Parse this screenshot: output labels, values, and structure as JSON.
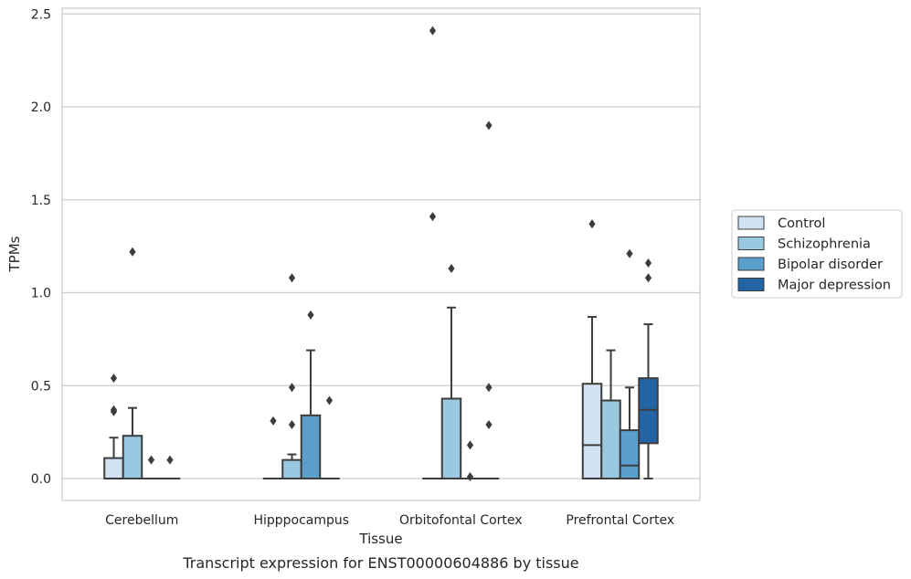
{
  "chart_data": {
    "type": "box",
    "title": "",
    "caption": "Transcript expression for ENST00000604886 by tissue",
    "xlabel": "Tissue",
    "ylabel": "TPMs",
    "ylim": [
      -0.12,
      2.55
    ],
    "yticks": [
      0.0,
      0.5,
      1.0,
      1.5,
      2.0,
      2.5
    ],
    "ytick_labels": [
      "0.0",
      "0.5",
      "1.0",
      "1.5",
      "2.0",
      "2.5"
    ],
    "grid": "horizontal",
    "legend_position": "right",
    "categories": [
      "Cerebellum",
      "Hipppocampus",
      "Orbitofontal Cortex",
      "Prefrontal Cortex"
    ],
    "series": [
      {
        "name": "Control",
        "color": "#d0e1f1",
        "boxes": [
          {
            "q1": 0.0,
            "median": 0.0,
            "q3": 0.11,
            "whisker_low": 0.0,
            "whisker_high": 0.22,
            "outliers": [
              0.36,
              0.37,
              0.54
            ]
          },
          {
            "q1": 0.0,
            "median": 0.0,
            "q3": 0.0,
            "whisker_low": 0.0,
            "whisker_high": 0.0,
            "outliers": [
              0.31
            ]
          },
          {
            "q1": 0.0,
            "median": 0.0,
            "q3": 0.0,
            "whisker_low": 0.0,
            "whisker_high": 0.0,
            "outliers": [
              1.41,
              2.41
            ]
          },
          {
            "q1": 0.0,
            "median": 0.18,
            "q3": 0.51,
            "whisker_low": 0.0,
            "whisker_high": 0.87,
            "outliers": [
              1.37
            ]
          }
        ]
      },
      {
        "name": "Schizophrenia",
        "color": "#9ac8e0",
        "boxes": [
          {
            "q1": 0.0,
            "median": 0.0,
            "q3": 0.23,
            "whisker_low": 0.0,
            "whisker_high": 0.38,
            "outliers": [
              1.22
            ]
          },
          {
            "q1": 0.0,
            "median": 0.0,
            "q3": 0.1,
            "whisker_low": 0.0,
            "whisker_high": 0.13,
            "outliers": [
              0.29,
              0.49,
              1.08
            ]
          },
          {
            "q1": 0.0,
            "median": 0.0,
            "q3": 0.43,
            "whisker_low": 0.0,
            "whisker_high": 0.92,
            "outliers": [
              1.13
            ]
          },
          {
            "q1": 0.0,
            "median": 0.0,
            "q3": 0.42,
            "whisker_low": 0.0,
            "whisker_high": 0.69,
            "outliers": []
          }
        ]
      },
      {
        "name": "Bipolar disorder",
        "color": "#5a9ecc",
        "boxes": [
          {
            "q1": 0.0,
            "median": 0.0,
            "q3": 0.0,
            "whisker_low": 0.0,
            "whisker_high": 0.0,
            "outliers": [
              0.1
            ]
          },
          {
            "q1": 0.0,
            "median": 0.0,
            "q3": 0.34,
            "whisker_low": 0.0,
            "whisker_high": 0.69,
            "outliers": [
              0.88
            ]
          },
          {
            "q1": 0.0,
            "median": 0.0,
            "q3": 0.0,
            "whisker_low": 0.0,
            "whisker_high": 0.0,
            "outliers": [
              0.01,
              0.18
            ]
          },
          {
            "q1": 0.0,
            "median": 0.07,
            "q3": 0.26,
            "whisker_low": 0.0,
            "whisker_high": 0.49,
            "outliers": [
              1.21
            ]
          }
        ]
      },
      {
        "name": "Major depression",
        "color": "#2464a4",
        "boxes": [
          {
            "q1": 0.0,
            "median": 0.0,
            "q3": 0.0,
            "whisker_low": 0.0,
            "whisker_high": 0.0,
            "outliers": [
              0.1
            ]
          },
          {
            "q1": 0.0,
            "median": 0.0,
            "q3": 0.0,
            "whisker_low": 0.0,
            "whisker_high": 0.0,
            "outliers": [
              0.42
            ]
          },
          {
            "q1": 0.0,
            "median": 0.0,
            "q3": 0.0,
            "whisker_low": 0.0,
            "whisker_high": 0.0,
            "outliers": [
              0.29,
              0.49,
              1.9
            ]
          },
          {
            "q1": 0.19,
            "median": 0.37,
            "q3": 0.54,
            "whisker_low": 0.0,
            "whisker_high": 0.83,
            "outliers": [
              1.08,
              1.16
            ]
          }
        ]
      }
    ]
  }
}
